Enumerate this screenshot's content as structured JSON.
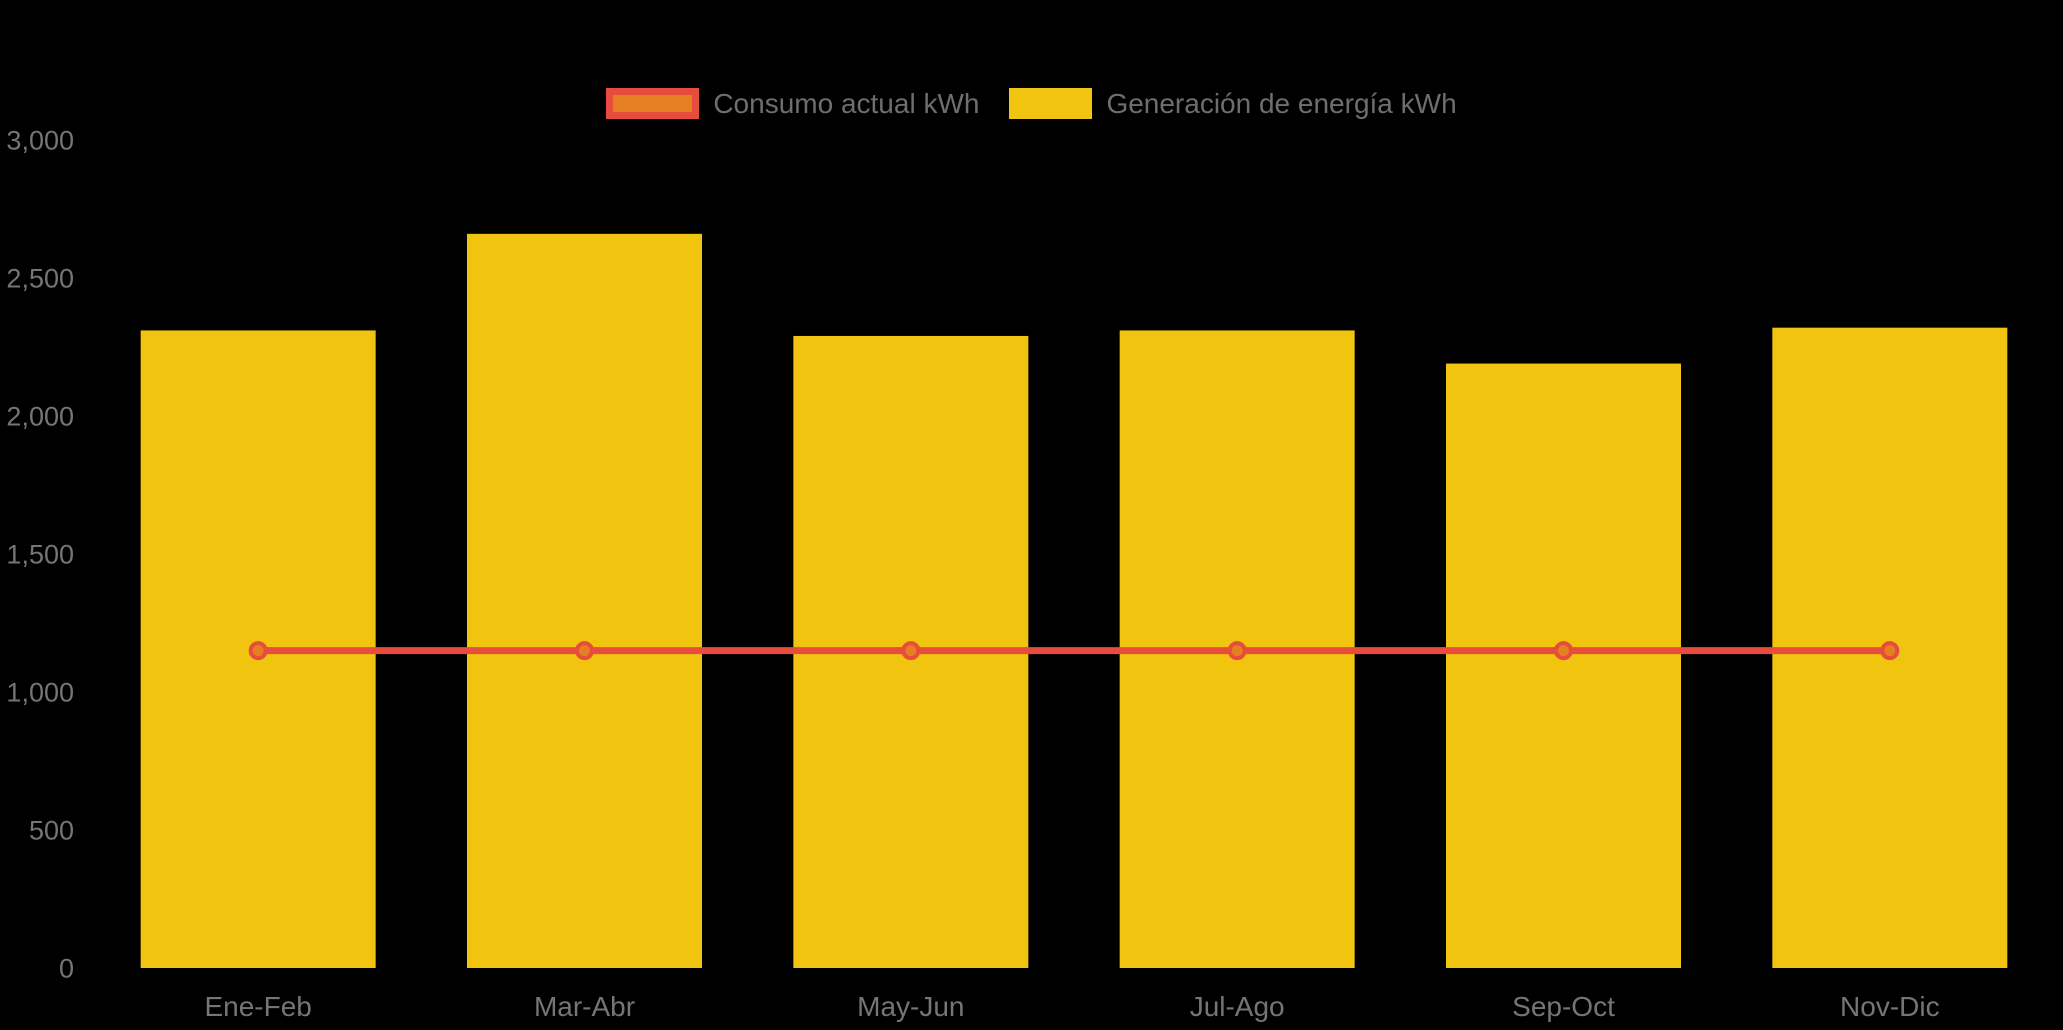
{
  "chart_data": {
    "type": "bar",
    "subtype": "bar-with-line-overlay",
    "title": "",
    "xlabel": "",
    "ylabel": "",
    "categories": [
      "Ene-Feb",
      "Mar-Abr",
      "May-Jun",
      "Jul-Ago",
      "Sep-Oct",
      "Nov-Dic"
    ],
    "series": [
      {
        "name": "Consumo actual kWh",
        "type": "line",
        "values": [
          1150,
          1150,
          1150,
          1150,
          1150,
          1150
        ],
        "color": "#E74C3C",
        "marker_fill": "#E67E22"
      },
      {
        "name": "Generación de energía kWh",
        "type": "bar",
        "values": [
          2310,
          2660,
          2290,
          2310,
          2190,
          2320
        ],
        "color": "#F1C40F"
      }
    ],
    "ylim": [
      0,
      3000
    ],
    "yticks": [
      0,
      500,
      1000,
      1500,
      2000,
      2500,
      3000
    ],
    "ytick_labels": [
      "0",
      "500",
      "1,000",
      "1,500",
      "2,000",
      "2,500",
      "3,000"
    ],
    "grid": false,
    "legend_position": "top-center",
    "colors": {
      "background": "#000000",
      "axis_text": "#757575",
      "legend_text": "#6E6E6E"
    }
  }
}
